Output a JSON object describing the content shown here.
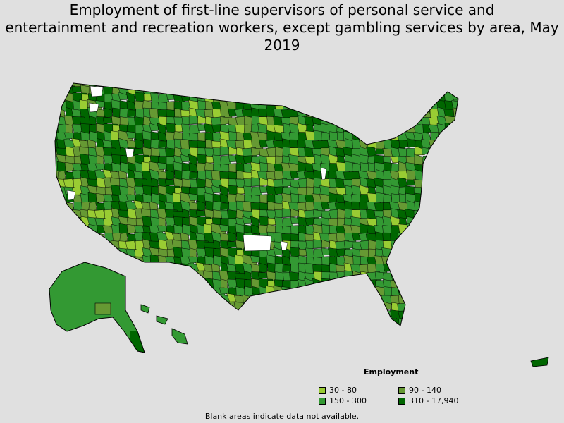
{
  "title_line1": "Employment of first-line supervisors of personal service and",
  "title_line2": "entertainment and recreation workers, except gambling services by area, May 2019",
  "legend": {
    "title": "Employment",
    "items": [
      {
        "label": "30 - 80",
        "color": "#99cc33"
      },
      {
        "label": "90 - 140",
        "color": "#669933"
      },
      {
        "label": "150 - 300",
        "color": "#339933"
      },
      {
        "label": "310 - 17,940",
        "color": "#006600"
      }
    ]
  },
  "colors": {
    "background": "#e0e0e0",
    "no_data": "#ffffff",
    "border": "#000000"
  },
  "footnote": "Blank areas indicate data not available."
}
